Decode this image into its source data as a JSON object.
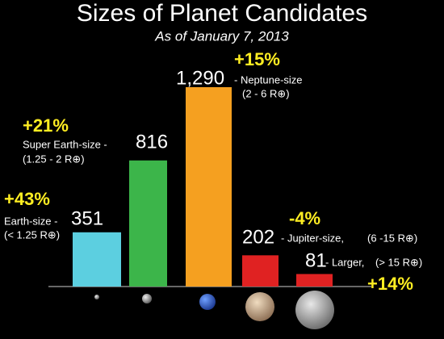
{
  "chart_data": {
    "type": "bar",
    "title": "Sizes of Planet Candidates",
    "subtitle": "As of January 7, 2013",
    "categories": [
      "Earth-size -",
      "Super Earth-size -",
      "- Neptune-size",
      "- Jupiter-size,",
      "- Larger,"
    ],
    "size_ranges": [
      "(< 1.25 R⊕)",
      "(1.25 - 2 R⊕)",
      "(2 - 6 R⊕)",
      "(6 -15 R⊕)",
      "(> 15 R⊕)"
    ],
    "changes": [
      "+43%",
      "+21%",
      "+15%",
      "-4%",
      "+14%"
    ],
    "values": [
      351,
      816,
      1290,
      202,
      81
    ],
    "value_labels": [
      "351",
      "816",
      "1,290",
      "202",
      "81"
    ],
    "colors": [
      "#5ccfe0",
      "#3cb54a",
      "#f5a020",
      "#e02222",
      "#e02222"
    ]
  }
}
